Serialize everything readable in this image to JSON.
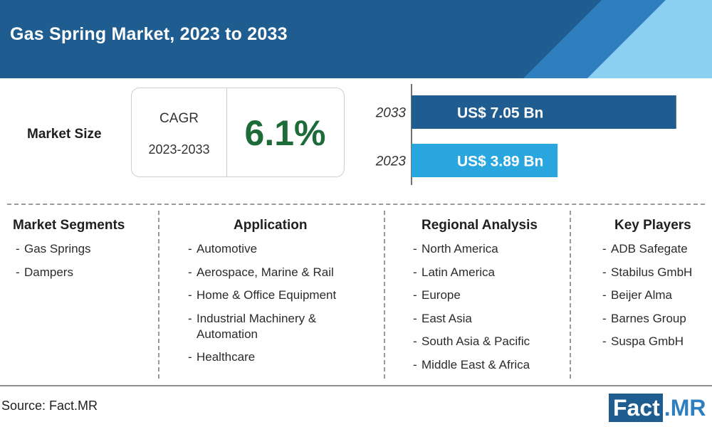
{
  "title": "Gas Spring Market, 2023 to 2033",
  "market_size_label": "Market Size",
  "cagr": {
    "label": "CAGR",
    "period": "2023-2033",
    "value": "6.1%"
  },
  "chart_data": {
    "type": "bar",
    "orientation": "horizontal",
    "categories": [
      "2033",
      "2023"
    ],
    "values": [
      7.05,
      3.89
    ],
    "data_labels": [
      "US$ 7.05 Bn",
      "US$ 3.89 Bn"
    ],
    "colors": [
      "#1f5c8f",
      "#2aa6df"
    ],
    "xlim": [
      0,
      7.3
    ],
    "title": "",
    "xlabel": "",
    "ylabel": ""
  },
  "columns": [
    {
      "title": "Market Segments",
      "items": [
        "Gas Springs",
        "Dampers"
      ]
    },
    {
      "title": "Application",
      "items": [
        "Automotive",
        "Aerospace, Marine & Rail",
        "Home & Office Equipment",
        "Industrial Machinery & Automation",
        "Healthcare"
      ]
    },
    {
      "title": "Regional Analysis",
      "items": [
        "North America",
        "Latin America",
        "Europe",
        "East Asia",
        "South Asia & Pacific",
        "Middle East & Africa"
      ]
    },
    {
      "title": "Key Players",
      "items": [
        "ADB Safegate",
        "Stabilus GmbH",
        "Beijer Alma",
        "Barnes Group",
        "Suspa GmbH"
      ]
    }
  ],
  "source": "Source: Fact.MR",
  "logo": {
    "part1": "Fact",
    "part2": ".MR"
  },
  "colors": {
    "header": "#1f5c8f",
    "accent_light": "#8cd0f1",
    "cagr_green": "#1e6b3a"
  }
}
